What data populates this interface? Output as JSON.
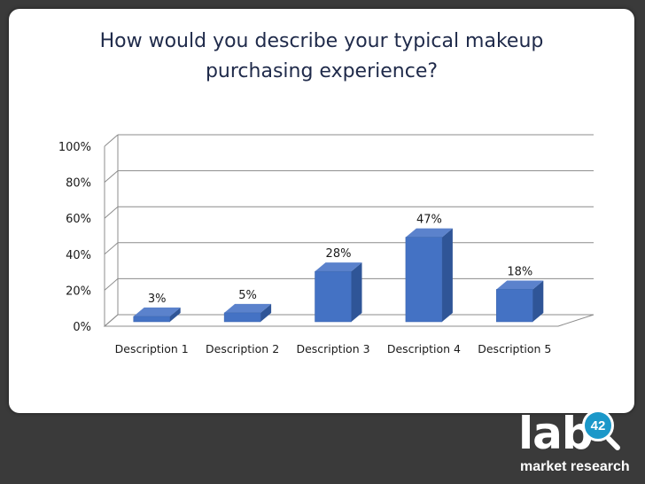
{
  "chart_data": {
    "type": "bar",
    "title": "How would you describe your typical makeup purchasing experience?",
    "title_line1": "How would you describe your typical makeup",
    "title_line2": "purchasing experience?",
    "categories": [
      "Description 1",
      "Description 2",
      "Description 3",
      "Description 4",
      "Description 5"
    ],
    "values": [
      3,
      5,
      28,
      47,
      18
    ],
    "data_labels": [
      "3%",
      "5%",
      "28%",
      "47%",
      "18%"
    ],
    "yticks": [
      "0%",
      "20%",
      "40%",
      "60%",
      "80%",
      "100%"
    ],
    "ylim": [
      0,
      100
    ],
    "grid": true,
    "bar_color": "#4472c4",
    "bar_side_color": "#2f5597",
    "bar_top_color": "#5b82cc"
  },
  "logo": {
    "brand": "lab",
    "badge": "42",
    "subtitle": "market research"
  },
  "colors": {
    "background": "#3a3a3a",
    "panel": "#ffffff",
    "title": "#1f2a4a"
  }
}
